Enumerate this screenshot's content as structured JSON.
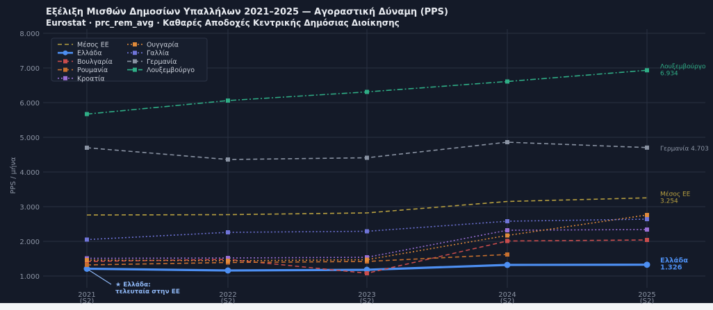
{
  "chart_data": {
    "type": "line",
    "title": "Εξέλιξη Μισθών Δημοσίων Υπαλλήλων 2021–2025 — Αγοραστική Δύναμη (PPS)",
    "subtitle": "Eurostat · prc_rem_avg · Καθαρές Αποδοχές Κεντρικής Δημόσιας Διοίκησης",
    "ylabel": "PPS / μήνα",
    "xlabel": "",
    "x": [
      2021,
      2022,
      2023,
      2024,
      2025
    ],
    "x_tick_labels": [
      [
        "2021",
        "(S2)"
      ],
      [
        "2022",
        "(S2)"
      ],
      [
        "2023",
        "(S2)"
      ],
      [
        "2024",
        "(S2)"
      ],
      [
        "2025",
        "(S2)"
      ]
    ],
    "y_ticks": [
      "1.000",
      "2.000",
      "3.000",
      "4.000",
      "5.000",
      "6.000",
      "7.000",
      "8.000"
    ],
    "ylim": [
      700,
      8000
    ],
    "grid": true,
    "legend_position": "top-left",
    "series": [
      {
        "name": "Μέσος ΕΕ",
        "values": [
          2760,
          2770,
          2820,
          3150,
          3254
        ],
        "color": "#b8a040",
        "dash": "6,4",
        "marker": "none",
        "width": 1.6
      },
      {
        "name": "Ελλάδα",
        "values": [
          1210,
          1160,
          1180,
          1320,
          1326
        ],
        "color": "#4d8ff2",
        "dash": "",
        "marker": "circle",
        "width": 3.2
      },
      {
        "name": "Βουλγαρία",
        "values": [
          1420,
          1480,
          1080,
          2010,
          2040
        ],
        "color": "#c94c4c",
        "dash": "6,4",
        "marker": "square",
        "width": 1.6
      },
      {
        "name": "Ρουμανία",
        "values": [
          1320,
          1390,
          1420,
          1620,
          null
        ],
        "color": "#c8702e",
        "dash": "6,4",
        "marker": "square",
        "width": 1.6
      },
      {
        "name": "Κροατία",
        "values": [
          1510,
          1520,
          1540,
          2320,
          2340
        ],
        "color": "#9a6fd6",
        "dash": "2,3",
        "marker": "square",
        "width": 1.6
      },
      {
        "name": "Ουγγαρία",
        "values": [
          1460,
          1440,
          1470,
          2170,
          2760
        ],
        "color": "#e08a3a",
        "dash": "2,3",
        "marker": "square",
        "width": 1.6
      },
      {
        "name": "Γαλλία",
        "values": [
          2050,
          2260,
          2290,
          2580,
          2640
        ],
        "color": "#6f74d8",
        "dash": "2,3",
        "marker": "square",
        "width": 1.6
      },
      {
        "name": "Γερμανία",
        "values": [
          4700,
          4360,
          4410,
          4860,
          4703
        ],
        "color": "#8a93a3",
        "dash": "6,4",
        "marker": "square",
        "width": 1.6
      },
      {
        "name": "Λουξεμβούργο",
        "values": [
          5670,
          6060,
          6310,
          6610,
          6934
        ],
        "color": "#2fae86",
        "dash": "8,3,2,3",
        "marker": "square",
        "width": 1.6
      }
    ],
    "end_labels": [
      {
        "series": "Λουξεμβούργο",
        "lines": [
          "Λουξεμβούργο",
          "6.934"
        ]
      },
      {
        "series": "Γερμανία",
        "lines": [
          "Γερμανία 4.703"
        ]
      },
      {
        "series": "Μέσος ΕΕ",
        "lines": [
          "Μέσος ΕΕ",
          "3.254"
        ]
      },
      {
        "series": "Ελλάδα",
        "lines": [
          "Ελλάδα",
          "1.326"
        ]
      }
    ],
    "annotation": {
      "lines": [
        "★ Ελλάδα:",
        "τελευταία στην ΕΕ"
      ],
      "series": "Ελλάδα",
      "x": 2021
    }
  },
  "colors": {
    "background": "#f4f5f7",
    "plot_background": "#141a28",
    "grid": "#2a3142",
    "axis_text": "#8d95a5",
    "title_text": "#e8ebf0",
    "annotation": "#8fb8f6"
  }
}
